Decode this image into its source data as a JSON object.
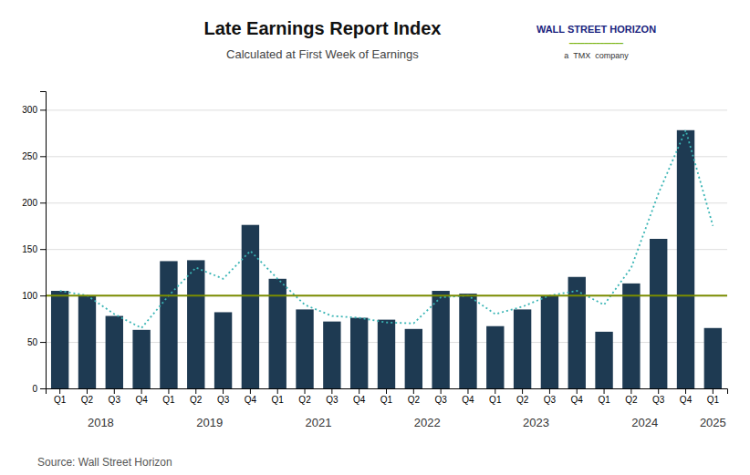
{
  "chart_data": {
    "type": "bar",
    "title": "Late Earnings Report Index",
    "subtitle": "Calculated at First Week of Earnings",
    "source": "Source: Wall Street Horizon",
    "categories": [
      "Q1",
      "Q2",
      "Q3",
      "Q4",
      "Q1",
      "Q2",
      "Q3",
      "Q4",
      "Q1",
      "Q2",
      "Q3",
      "Q4",
      "Q1",
      "Q2",
      "Q3",
      "Q4",
      "Q1",
      "Q2",
      "Q3",
      "Q4",
      "Q1",
      "Q2",
      "Q3",
      "Q4",
      "Q1"
    ],
    "groups": [
      {
        "label": "2018",
        "start": 0,
        "end": 3
      },
      {
        "label": "2019",
        "start": 4,
        "end": 7
      },
      {
        "label": "2021",
        "start": 8,
        "end": 11
      },
      {
        "label": "2022",
        "start": 12,
        "end": 15
      },
      {
        "label": "2023",
        "start": 16,
        "end": 19
      },
      {
        "label": "2024",
        "start": 20,
        "end": 23
      },
      {
        "label": "2025",
        "start": 24,
        "end": 24
      }
    ],
    "series": [
      {
        "type": "bar",
        "color": "#1e3a52",
        "values": [
          105,
          100,
          78,
          63,
          137,
          138,
          82,
          176,
          118,
          85,
          72,
          76,
          74,
          64,
          105,
          102,
          67,
          85,
          100,
          120,
          61,
          113,
          161,
          278,
          65
        ]
      },
      {
        "type": "line",
        "color": "#3ab5b5",
        "line_style": "dotted",
        "values": [
          105,
          100,
          80,
          65,
          100,
          130,
          118,
          148,
          118,
          90,
          78,
          76,
          71,
          70,
          98,
          100,
          80,
          88,
          100,
          105,
          90,
          130,
          210,
          278,
          175
        ]
      }
    ],
    "hline": {
      "value": 100,
      "color": "#7a8c00"
    },
    "annotations": [
      {
        "text": "WALL STREET HORIZON",
        "color": "#1a237e"
      },
      {
        "text": "━━━━━━━━━━━━━━",
        "color": "#7cb518"
      },
      {
        "text": "a  TMX  company",
        "color": "#333333"
      }
    ],
    "ylim": [
      0,
      320
    ],
    "yticks": [
      0,
      50,
      100,
      150,
      200,
      250,
      300
    ],
    "grid": true
  }
}
